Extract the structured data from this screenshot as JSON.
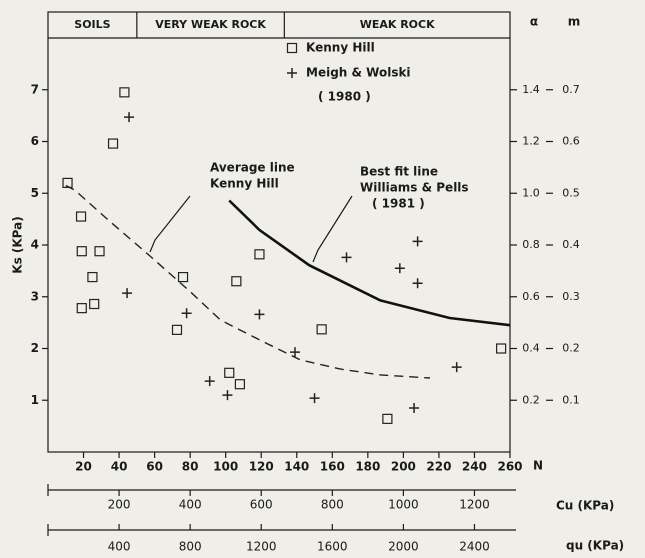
{
  "chart_data": {
    "type": "scatter",
    "x_label": "N",
    "y_label": "Ks (KPa)",
    "xlim": [
      0,
      260
    ],
    "xticks": [
      20,
      40,
      60,
      80,
      100,
      120,
      140,
      160,
      180,
      200,
      220,
      240,
      260
    ],
    "ylim": [
      0,
      8
    ],
    "yticks": [
      1,
      2,
      3,
      4,
      5,
      6,
      7
    ],
    "zones": [
      {
        "label": "SOILS",
        "from": 0,
        "to": 50
      },
      {
        "label": "VERY WEAK ROCK",
        "from": 50,
        "to": 133
      },
      {
        "label": "WEAK ROCK",
        "from": 133,
        "to": 260
      }
    ],
    "series": [
      {
        "name": "Kenny Hill",
        "marker": "square",
        "color": "#222222",
        "x": [
          11,
          18.6,
          19,
          19,
          25,
          26,
          29,
          36.6,
          43,
          76,
          72.6,
          102,
          108,
          106,
          119,
          154,
          191,
          255
        ],
        "values": [
          5.2,
          4.55,
          3.88,
          2.78,
          3.38,
          2.86,
          3.88,
          5.96,
          6.95,
          3.38,
          2.36,
          1.53,
          1.31,
          3.3,
          3.82,
          2.37,
          0.64,
          2.0
        ]
      },
      {
        "name": "Meigh & Wolski",
        "marker": "plus",
        "color": "#222222",
        "x": [
          45.6,
          44.5,
          78,
          91,
          101,
          119,
          139,
          150,
          168,
          198,
          208,
          208,
          206,
          230
        ],
        "values": [
          6.47,
          3.07,
          2.68,
          1.37,
          1.1,
          2.66,
          1.93,
          1.04,
          3.76,
          3.55,
          4.07,
          3.26,
          0.85,
          1.64
        ]
      }
    ],
    "legend_note": "( 1980 )",
    "lines": [
      {
        "label": [
          "Average line",
          "Kenny Hill"
        ],
        "style": "dashed",
        "color": "#222222",
        "x": [
          10,
          15,
          35,
          57,
          80,
          97,
          120,
          142,
          165,
          187,
          215
        ],
        "values": [
          5.15,
          5.06,
          4.45,
          3.8,
          3.1,
          2.55,
          2.15,
          1.78,
          1.6,
          1.49,
          1.43
        ]
      },
      {
        "label": [
          "Best fit line",
          "Williams & Pells",
          "( 1981 )"
        ],
        "style": "solid",
        "color": "#111111",
        "x": [
          102,
          119,
          147,
          187,
          226,
          260
        ],
        "values": [
          4.86,
          4.29,
          3.61,
          2.93,
          2.59,
          2.45
        ]
      }
    ],
    "y2": {
      "label": "α",
      "lim": [
        0,
        1.6
      ],
      "ticks": [
        0.2,
        0.4,
        0.6,
        0.8,
        {
          "value": 1,
          "label": "1.0"
        },
        1.2,
        1.4
      ]
    },
    "y3": {
      "label": "m",
      "lim": [
        0,
        0.8
      ],
      "ticks": [
        0.1,
        0.2,
        0.3,
        0.4,
        0.5,
        0.6,
        0.7
      ]
    },
    "cu": {
      "label": "Cu (KPa)",
      "lim": [
        0,
        1300
      ],
      "ticks": [
        200,
        400,
        600,
        800,
        1000,
        1200
      ]
    },
    "qu": {
      "label": "qu (KPa)",
      "lim": [
        0,
        2600
      ],
      "ticks": [
        400,
        800,
        1200,
        1600,
        2000,
        2400
      ]
    }
  }
}
